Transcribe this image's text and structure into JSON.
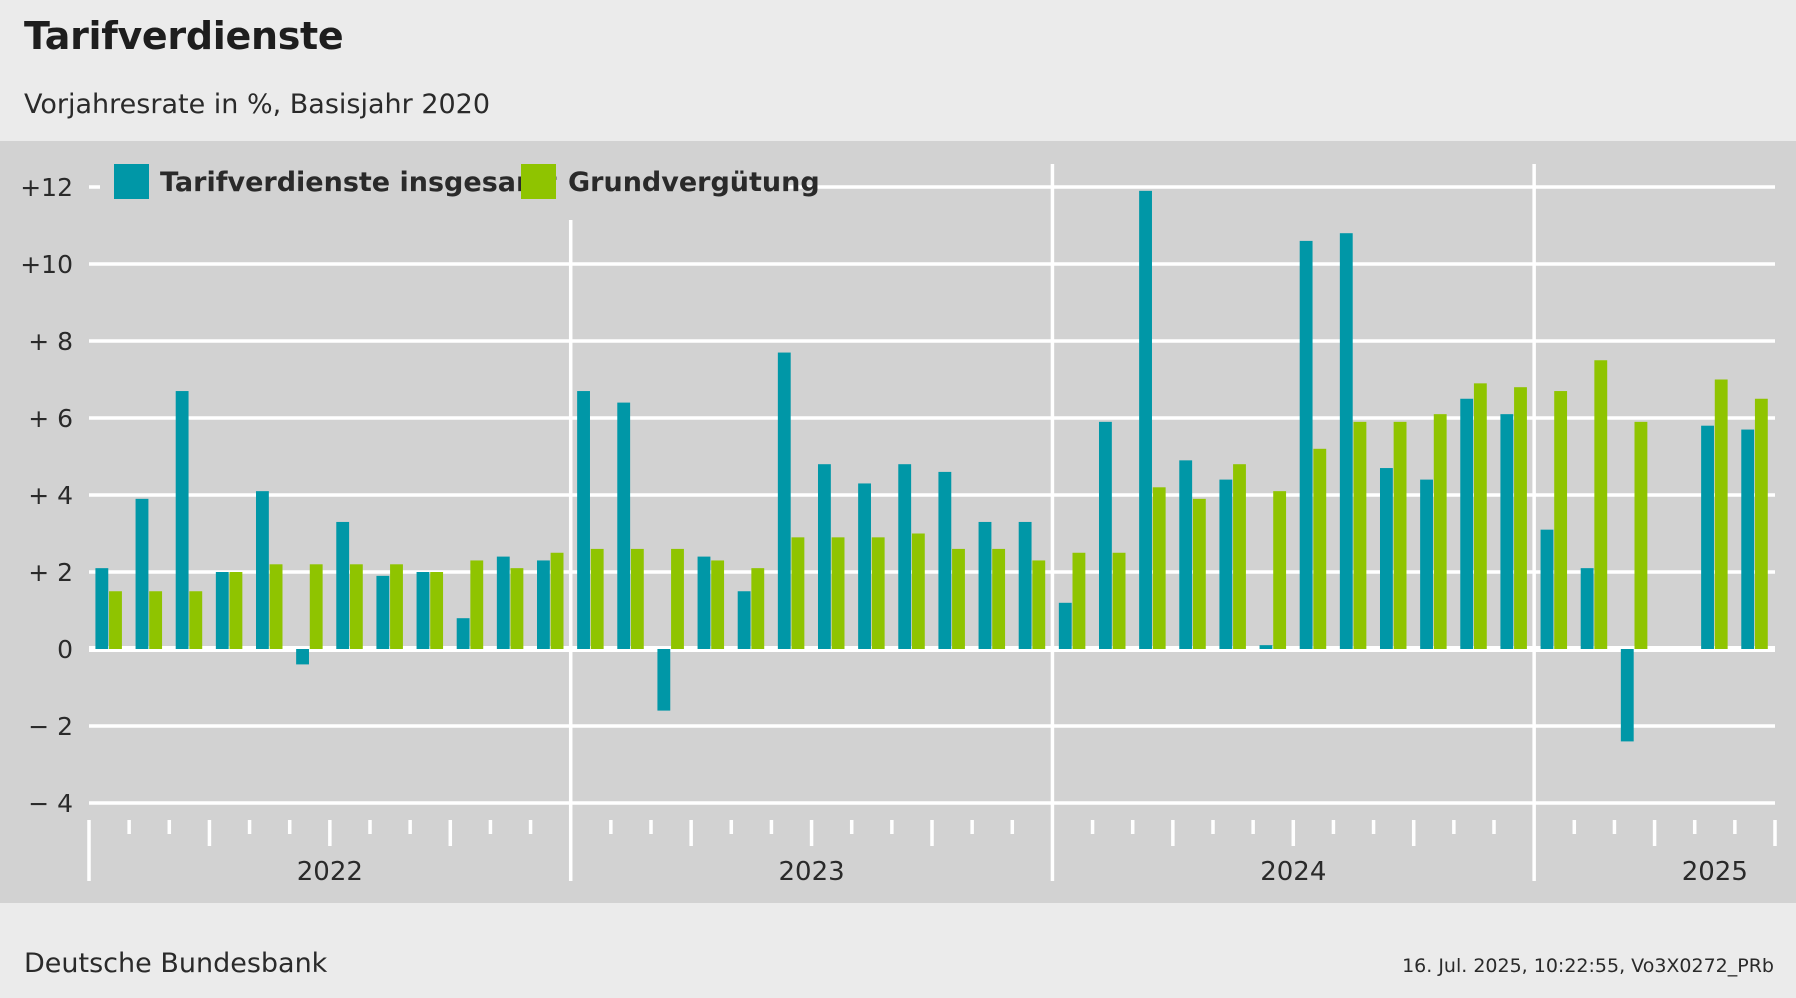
{
  "header": {
    "title": "Tarifverdienste",
    "subtitle": "Vorjahresrate in %, Basisjahr 2020"
  },
  "footer": {
    "source": "Deutsche Bundesbank",
    "stamp": "16. Jul. 2025, 10:22:55, Vo3X0272_PRb"
  },
  "colors": {
    "series1": "#0097a7",
    "series2": "#8fc400",
    "plot_background": "#d2d2d2",
    "page_background": "#ebebeb",
    "grid": "#ffffff"
  },
  "chart_data": {
    "type": "bar",
    "ylim": [
      -4,
      12
    ],
    "y_ticks": [
      {
        "value": 12,
        "label": "+12"
      },
      {
        "value": 10,
        "label": "+10"
      },
      {
        "value": 8,
        "label": "+  8"
      },
      {
        "value": 6,
        "label": "+  6"
      },
      {
        "value": 4,
        "label": "+  4"
      },
      {
        "value": 2,
        "label": "+  2"
      },
      {
        "value": 0,
        "label": "0"
      },
      {
        "value": -2,
        "label": "−  2"
      },
      {
        "value": -4,
        "label": "−  4"
      }
    ],
    "grid": true,
    "legend_position": "top-left",
    "years": [
      {
        "label": "2022",
        "months": 12
      },
      {
        "label": "2023",
        "months": 12
      },
      {
        "label": "2024",
        "months": 12
      },
      {
        "label": "2025",
        "months": 6
      }
    ],
    "series": [
      {
        "name": "Tarifverdienste insgesamt",
        "values": [
          2.1,
          3.9,
          6.7,
          2.0,
          4.1,
          -0.4,
          3.3,
          1.9,
          2.0,
          0.8,
          2.4,
          2.3,
          6.7,
          6.4,
          -1.6,
          2.4,
          1.5,
          7.7,
          4.8,
          4.3,
          4.8,
          4.6,
          3.3,
          3.3,
          1.2,
          5.9,
          11.9,
          4.9,
          4.4,
          0.1,
          10.6,
          10.8,
          4.7,
          4.4,
          6.5,
          6.1,
          3.1,
          2.1,
          -2.4,
          null,
          5.8,
          5.7
        ]
      },
      {
        "name": "Grundvergütung",
        "values": [
          1.5,
          1.5,
          1.5,
          2.0,
          2.2,
          2.2,
          2.2,
          2.2,
          2.0,
          2.3,
          2.1,
          2.5,
          2.6,
          2.6,
          2.6,
          2.3,
          2.1,
          2.9,
          2.9,
          2.9,
          3.0,
          2.6,
          2.6,
          2.3,
          2.5,
          2.5,
          4.2,
          3.9,
          4.8,
          4.1,
          5.2,
          5.9,
          5.9,
          6.1,
          6.9,
          6.8,
          6.7,
          7.5,
          5.9,
          null,
          7.0,
          6.5
        ]
      }
    ]
  }
}
